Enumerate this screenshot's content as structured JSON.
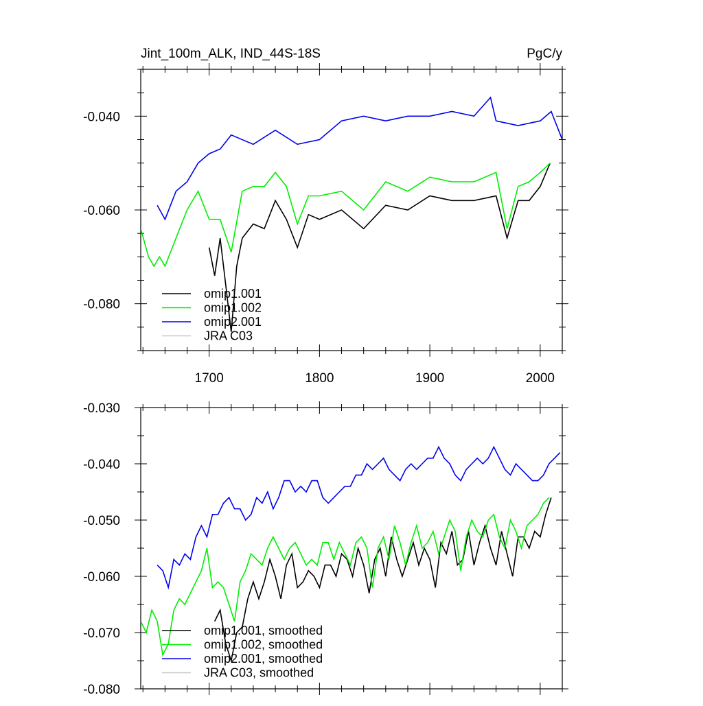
{
  "header": {
    "title": "Jint_100m_ALK, IND_44S-18S",
    "units": "PgC/y"
  },
  "colors": {
    "omip1_001": "#000000",
    "omip1_002": "#00ee00",
    "omip2_001": "#0000ee",
    "jra_c03": "#c8c8c8"
  },
  "chart_data": [
    {
      "type": "line",
      "title": "Jint_100m_ALK, IND_44S-18S",
      "units": "PgC/y",
      "xlim": [
        1638,
        2020
      ],
      "ylim": [
        -0.09,
        -0.03
      ],
      "xticks": [
        1700,
        1800,
        1900,
        2000
      ],
      "xtick_labels": [
        "1700",
        "1800",
        "1900",
        "2000"
      ],
      "yticks": [
        -0.08,
        -0.06,
        -0.04
      ],
      "ytick_labels": [
        "-0.080",
        "-0.060",
        "-0.040"
      ],
      "legend_position": "bottom-left",
      "legend": [
        "omip1.001",
        "omip1.002",
        "omip2.001",
        "JRA C03"
      ],
      "series": [
        {
          "name": "omip1.001",
          "color": "#000000",
          "x": [
            1700,
            1705,
            1710,
            1715,
            1720,
            1725,
            1730,
            1740,
            1750,
            1760,
            1770,
            1780,
            1790,
            1800,
            1820,
            1840,
            1860,
            1880,
            1900,
            1920,
            1940,
            1960,
            1970,
            1980,
            1990,
            2000,
            2009
          ],
          "y": [
            -0.068,
            -0.074,
            -0.066,
            -0.076,
            -0.086,
            -0.072,
            -0.066,
            -0.063,
            -0.064,
            -0.058,
            -0.062,
            -0.068,
            -0.061,
            -0.062,
            -0.06,
            -0.064,
            -0.059,
            -0.06,
            -0.057,
            -0.058,
            -0.058,
            -0.057,
            -0.066,
            -0.058,
            -0.058,
            -0.055,
            -0.05
          ]
        },
        {
          "name": "omip1.002",
          "color": "#00ee00",
          "x": [
            1638,
            1645,
            1650,
            1655,
            1660,
            1665,
            1670,
            1680,
            1690,
            1700,
            1710,
            1720,
            1730,
            1740,
            1750,
            1760,
            1770,
            1780,
            1790,
            1800,
            1820,
            1840,
            1860,
            1880,
            1900,
            1920,
            1940,
            1960,
            1970,
            1980,
            1990,
            2000,
            2009
          ],
          "y": [
            -0.064,
            -0.07,
            -0.072,
            -0.07,
            -0.072,
            -0.069,
            -0.066,
            -0.06,
            -0.056,
            -0.062,
            -0.062,
            -0.069,
            -0.056,
            -0.055,
            -0.055,
            -0.052,
            -0.055,
            -0.063,
            -0.057,
            -0.057,
            -0.056,
            -0.06,
            -0.054,
            -0.056,
            -0.053,
            -0.054,
            -0.054,
            -0.052,
            -0.064,
            -0.055,
            -0.054,
            -0.052,
            -0.05
          ]
        },
        {
          "name": "omip2.001",
          "color": "#0000ee",
          "x": [
            1653,
            1660,
            1670,
            1680,
            1690,
            1700,
            1710,
            1720,
            1740,
            1760,
            1780,
            1800,
            1820,
            1840,
            1860,
            1880,
            1900,
            1920,
            1940,
            1955,
            1960,
            1980,
            2000,
            2010,
            2020
          ],
          "y": [
            -0.059,
            -0.062,
            -0.056,
            -0.054,
            -0.05,
            -0.048,
            -0.047,
            -0.044,
            -0.046,
            -0.043,
            -0.046,
            -0.045,
            -0.041,
            -0.04,
            -0.041,
            -0.04,
            -0.04,
            -0.039,
            -0.04,
            -0.036,
            -0.041,
            -0.042,
            -0.041,
            -0.039,
            -0.045
          ]
        }
      ]
    },
    {
      "type": "line",
      "xlim": [
        1638,
        2020
      ],
      "ylim": [
        -0.08,
        -0.03
      ],
      "xticks": [
        1700,
        1800,
        1900,
        2000
      ],
      "yticks": [
        -0.08,
        -0.07,
        -0.06,
        -0.05,
        -0.04,
        -0.03
      ],
      "ytick_labels": [
        "-0.080",
        "-0.070",
        "-0.060",
        "-0.050",
        "-0.040",
        "-0.030"
      ],
      "legend_position": "bottom-left",
      "legend": [
        "omip1.001, smoothed",
        "omip1.002, smoothed",
        "omip2.001, smoothed",
        "JRA C03, smoothed"
      ],
      "series": [
        {
          "name": "omip1.001, smoothed",
          "color": "#000000",
          "x": [
            1705,
            1710,
            1715,
            1720,
            1725,
            1730,
            1735,
            1740,
            1745,
            1750,
            1755,
            1760,
            1765,
            1770,
            1775,
            1780,
            1785,
            1790,
            1795,
            1800,
            1805,
            1810,
            1815,
            1820,
            1825,
            1830,
            1835,
            1840,
            1845,
            1850,
            1855,
            1860,
            1865,
            1870,
            1875,
            1880,
            1885,
            1890,
            1895,
            1900,
            1905,
            1910,
            1915,
            1920,
            1925,
            1930,
            1935,
            1940,
            1945,
            1950,
            1955,
            1960,
            1965,
            1970,
            1975,
            1980,
            1985,
            1990,
            1995,
            2000,
            2005,
            2010
          ],
          "y": [
            -0.068,
            -0.066,
            -0.072,
            -0.075,
            -0.07,
            -0.069,
            -0.064,
            -0.061,
            -0.064,
            -0.061,
            -0.057,
            -0.06,
            -0.064,
            -0.058,
            -0.056,
            -0.062,
            -0.061,
            -0.059,
            -0.06,
            -0.062,
            -0.058,
            -0.058,
            -0.06,
            -0.056,
            -0.057,
            -0.06,
            -0.055,
            -0.058,
            -0.063,
            -0.057,
            -0.055,
            -0.06,
            -0.053,
            -0.057,
            -0.06,
            -0.057,
            -0.054,
            -0.058,
            -0.055,
            -0.057,
            -0.062,
            -0.054,
            -0.056,
            -0.052,
            -0.058,
            -0.057,
            -0.052,
            -0.058,
            -0.054,
            -0.051,
            -0.055,
            -0.058,
            -0.052,
            -0.056,
            -0.06,
            -0.053,
            -0.053,
            -0.055,
            -0.052,
            -0.053,
            -0.049,
            -0.046
          ]
        },
        {
          "name": "omip1.002, smoothed",
          "color": "#00ee00",
          "x": [
            1638,
            1643,
            1648,
            1653,
            1658,
            1663,
            1668,
            1673,
            1678,
            1683,
            1688,
            1693,
            1698,
            1703,
            1708,
            1713,
            1718,
            1723,
            1728,
            1733,
            1738,
            1743,
            1748,
            1753,
            1758,
            1763,
            1768,
            1773,
            1778,
            1783,
            1788,
            1793,
            1798,
            1803,
            1808,
            1813,
            1818,
            1823,
            1828,
            1833,
            1838,
            1843,
            1848,
            1853,
            1858,
            1863,
            1868,
            1873,
            1878,
            1883,
            1888,
            1893,
            1898,
            1903,
            1908,
            1913,
            1918,
            1923,
            1928,
            1933,
            1938,
            1943,
            1948,
            1953,
            1958,
            1963,
            1968,
            1973,
            1978,
            1983,
            1988,
            1993,
            1998,
            2003,
            2008
          ],
          "y": [
            -0.068,
            -0.07,
            -0.066,
            -0.068,
            -0.074,
            -0.072,
            -0.066,
            -0.064,
            -0.065,
            -0.063,
            -0.061,
            -0.059,
            -0.055,
            -0.062,
            -0.061,
            -0.062,
            -0.065,
            -0.068,
            -0.061,
            -0.059,
            -0.056,
            -0.057,
            -0.058,
            -0.055,
            -0.053,
            -0.055,
            -0.057,
            -0.055,
            -0.054,
            -0.056,
            -0.058,
            -0.057,
            -0.058,
            -0.054,
            -0.054,
            -0.057,
            -0.054,
            -0.056,
            -0.058,
            -0.054,
            -0.053,
            -0.055,
            -0.062,
            -0.055,
            -0.053,
            -0.057,
            -0.051,
            -0.054,
            -0.058,
            -0.054,
            -0.051,
            -0.055,
            -0.054,
            -0.052,
            -0.056,
            -0.053,
            -0.05,
            -0.052,
            -0.059,
            -0.053,
            -0.05,
            -0.052,
            -0.053,
            -0.05,
            -0.049,
            -0.053,
            -0.055,
            -0.05,
            -0.052,
            -0.055,
            -0.051,
            -0.05,
            -0.049,
            -0.047,
            -0.046
          ]
        },
        {
          "name": "omip2.001, smoothed",
          "color": "#0000ee",
          "x": [
            1653,
            1658,
            1663,
            1668,
            1673,
            1678,
            1683,
            1688,
            1693,
            1698,
            1703,
            1708,
            1713,
            1718,
            1723,
            1728,
            1733,
            1738,
            1743,
            1748,
            1753,
            1758,
            1763,
            1768,
            1773,
            1778,
            1783,
            1788,
            1793,
            1798,
            1803,
            1808,
            1813,
            1818,
            1823,
            1828,
            1833,
            1838,
            1843,
            1848,
            1853,
            1858,
            1863,
            1868,
            1873,
            1878,
            1883,
            1888,
            1893,
            1898,
            1903,
            1908,
            1913,
            1918,
            1923,
            1928,
            1933,
            1938,
            1943,
            1948,
            1953,
            1958,
            1963,
            1968,
            1973,
            1978,
            1983,
            1988,
            1993,
            1998,
            2003,
            2008,
            2013,
            2018
          ],
          "y": [
            -0.058,
            -0.059,
            -0.062,
            -0.057,
            -0.058,
            -0.056,
            -0.057,
            -0.053,
            -0.051,
            -0.053,
            -0.049,
            -0.049,
            -0.047,
            -0.046,
            -0.048,
            -0.048,
            -0.05,
            -0.049,
            -0.046,
            -0.047,
            -0.045,
            -0.048,
            -0.046,
            -0.043,
            -0.043,
            -0.045,
            -0.044,
            -0.045,
            -0.043,
            -0.043,
            -0.046,
            -0.047,
            -0.046,
            -0.045,
            -0.044,
            -0.044,
            -0.042,
            -0.042,
            -0.04,
            -0.041,
            -0.04,
            -0.039,
            -0.041,
            -0.042,
            -0.043,
            -0.041,
            -0.04,
            -0.041,
            -0.04,
            -0.039,
            -0.039,
            -0.037,
            -0.039,
            -0.04,
            -0.042,
            -0.043,
            -0.041,
            -0.04,
            -0.039,
            -0.04,
            -0.039,
            -0.037,
            -0.039,
            -0.041,
            -0.042,
            -0.04,
            -0.041,
            -0.042,
            -0.043,
            -0.043,
            -0.042,
            -0.04,
            -0.039,
            -0.038
          ]
        }
      ]
    }
  ]
}
